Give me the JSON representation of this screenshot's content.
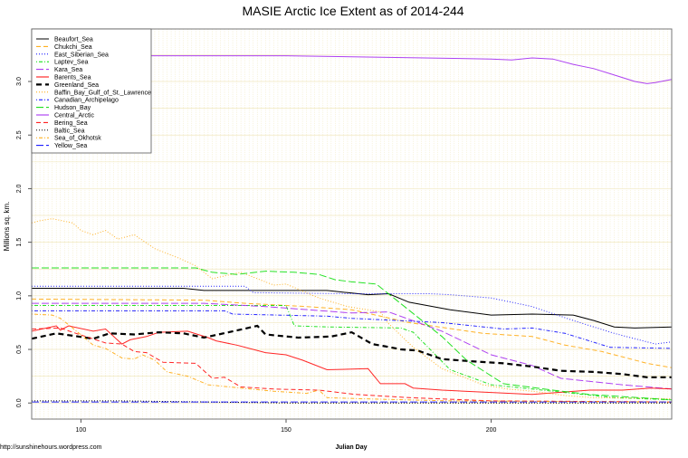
{
  "chart_data": {
    "type": "line",
    "title": "MASIE Arctic Ice Extent as of 2014-244",
    "xlabel": "Julian Day",
    "ylabel": "Millions sq. km.",
    "source": "http://sunshinehours.wordpress.com",
    "xlim": [
      88,
      244
    ],
    "ylim": [
      -0.15,
      3.49
    ],
    "xticks": [
      100,
      150,
      200
    ],
    "yticks": [
      0.0,
      0.5,
      1.0,
      1.5,
      2.0,
      2.5,
      3.0
    ],
    "ytick_labels": [
      "0.0",
      "0.5",
      "1.0",
      "1.5",
      "2.0",
      "2.5",
      "3.0"
    ],
    "grid": true,
    "legend_position": "top-left",
    "series": [
      {
        "name": "Beaufort_Sea",
        "color": "#000000",
        "style": "solid",
        "points": [
          [
            88,
            1.07
          ],
          [
            125,
            1.07
          ],
          [
            130,
            1.05
          ],
          [
            160,
            1.05
          ],
          [
            165,
            1.03
          ],
          [
            170,
            1.01
          ],
          [
            175,
            1.02
          ],
          [
            180,
            0.94
          ],
          [
            190,
            0.87
          ],
          [
            200,
            0.82
          ],
          [
            210,
            0.83
          ],
          [
            220,
            0.82
          ],
          [
            225,
            0.77
          ],
          [
            230,
            0.71
          ],
          [
            235,
            0.7
          ],
          [
            244,
            0.71
          ]
        ]
      },
      {
        "name": "Chukchi_Sea",
        "color": "#ffa500",
        "style": "dashed",
        "points": [
          [
            88,
            0.97
          ],
          [
            130,
            0.96
          ],
          [
            140,
            0.93
          ],
          [
            155,
            0.9
          ],
          [
            166,
            0.87
          ],
          [
            180,
            0.75
          ],
          [
            198,
            0.65
          ],
          [
            210,
            0.62
          ],
          [
            218,
            0.54
          ],
          [
            227,
            0.48
          ],
          [
            238,
            0.37
          ],
          [
            244,
            0.33
          ]
        ]
      },
      {
        "name": "East_Siberian_Sea",
        "color": "#0000ff",
        "style": "dotted",
        "points": [
          [
            88,
            1.09
          ],
          [
            140,
            1.09
          ],
          [
            142,
            1.03
          ],
          [
            165,
            1.02
          ],
          [
            185,
            1.02
          ],
          [
            190,
            1.01
          ],
          [
            200,
            0.98
          ],
          [
            210,
            0.9
          ],
          [
            220,
            0.77
          ],
          [
            230,
            0.65
          ],
          [
            240,
            0.55
          ],
          [
            244,
            0.57
          ]
        ]
      },
      {
        "name": "Laptev_Sea",
        "color": "#00dd00",
        "style": "dotdash",
        "points": [
          [
            88,
            0.91
          ],
          [
            150,
            0.91
          ],
          [
            152,
            0.72
          ],
          [
            160,
            0.71
          ],
          [
            178,
            0.7
          ],
          [
            181,
            0.66
          ],
          [
            190,
            0.31
          ],
          [
            200,
            0.17
          ],
          [
            210,
            0.13
          ],
          [
            220,
            0.09
          ],
          [
            230,
            0.05
          ],
          [
            244,
            0.03
          ]
        ]
      },
      {
        "name": "Kara_Sea",
        "color": "#a020f0",
        "style": "longdash",
        "points": [
          [
            88,
            0.93
          ],
          [
            130,
            0.93
          ],
          [
            145,
            0.9
          ],
          [
            166,
            0.84
          ],
          [
            175,
            0.85
          ],
          [
            188,
            0.67
          ],
          [
            200,
            0.45
          ],
          [
            210,
            0.35
          ],
          [
            217,
            0.23
          ],
          [
            232,
            0.17
          ],
          [
            244,
            0.13
          ]
        ]
      },
      {
        "name": "Barents_Sea",
        "color": "#ff0000",
        "style": "solid",
        "points": [
          [
            88,
            0.67
          ],
          [
            94,
            0.72
          ],
          [
            95,
            0.68
          ],
          [
            97,
            0.72
          ],
          [
            103,
            0.67
          ],
          [
            106,
            0.69
          ],
          [
            110,
            0.55
          ],
          [
            112,
            0.59
          ],
          [
            116,
            0.62
          ],
          [
            119,
            0.66
          ],
          [
            126,
            0.67
          ],
          [
            131,
            0.61
          ],
          [
            133,
            0.58
          ],
          [
            138,
            0.54
          ],
          [
            145,
            0.47
          ],
          [
            150,
            0.45
          ],
          [
            154,
            0.4
          ],
          [
            160,
            0.31
          ],
          [
            170,
            0.32
          ],
          [
            173,
            0.18
          ],
          [
            179,
            0.18
          ],
          [
            181,
            0.14
          ],
          [
            188,
            0.12
          ],
          [
            210,
            0.08
          ],
          [
            224,
            0.12
          ],
          [
            232,
            0.12
          ],
          [
            239,
            0.14
          ],
          [
            244,
            0.13
          ]
        ]
      },
      {
        "name": "Greenland_Sea",
        "color": "#000000",
        "style": "thickdash",
        "points": [
          [
            88,
            0.6
          ],
          [
            94,
            0.65
          ],
          [
            103,
            0.6
          ],
          [
            107,
            0.65
          ],
          [
            113,
            0.64
          ],
          [
            119,
            0.66
          ],
          [
            125,
            0.65
          ],
          [
            130,
            0.61
          ],
          [
            136,
            0.66
          ],
          [
            143,
            0.72
          ],
          [
            145,
            0.64
          ],
          [
            153,
            0.61
          ],
          [
            161,
            0.62
          ],
          [
            166,
            0.66
          ],
          [
            171,
            0.55
          ],
          [
            174,
            0.53
          ],
          [
            178,
            0.5
          ],
          [
            182,
            0.49
          ],
          [
            188,
            0.41
          ],
          [
            195,
            0.39
          ],
          [
            203,
            0.37
          ],
          [
            210,
            0.34
          ],
          [
            217,
            0.3
          ],
          [
            225,
            0.29
          ],
          [
            232,
            0.27
          ],
          [
            238,
            0.24
          ],
          [
            244,
            0.24
          ]
        ]
      },
      {
        "name": "Baffin_Bay_Gulf_of_St._Lawrence",
        "color": "#ffa500",
        "style": "dotted",
        "points": [
          [
            88,
            1.68
          ],
          [
            90,
            1.7
          ],
          [
            93,
            1.72
          ],
          [
            98,
            1.68
          ],
          [
            100,
            1.61
          ],
          [
            103,
            1.57
          ],
          [
            106,
            1.61
          ],
          [
            109,
            1.53
          ],
          [
            113,
            1.57
          ],
          [
            118,
            1.44
          ],
          [
            124,
            1.35
          ],
          [
            128,
            1.28
          ],
          [
            132,
            1.16
          ],
          [
            139,
            1.22
          ],
          [
            147,
            1.1
          ],
          [
            150,
            1.11
          ],
          [
            158,
            0.98
          ],
          [
            165,
            0.9
          ],
          [
            173,
            0.85
          ],
          [
            175,
            0.74
          ],
          [
            181,
            0.52
          ],
          [
            188,
            0.32
          ],
          [
            198,
            0.17
          ],
          [
            204,
            0.13
          ],
          [
            210,
            0.11
          ],
          [
            218,
            0.07
          ],
          [
            225,
            0.05
          ],
          [
            244,
            0.04
          ]
        ]
      },
      {
        "name": "Canadian_Archipelago",
        "color": "#0000ff",
        "style": "dotdash",
        "points": [
          [
            88,
            0.86
          ],
          [
            135,
            0.86
          ],
          [
            137,
            0.83
          ],
          [
            160,
            0.81
          ],
          [
            166,
            0.79
          ],
          [
            188,
            0.75
          ],
          [
            203,
            0.69
          ],
          [
            210,
            0.7
          ],
          [
            218,
            0.65
          ],
          [
            229,
            0.52
          ],
          [
            244,
            0.51
          ]
        ]
      },
      {
        "name": "Hudson_Bay",
        "color": "#00dd00",
        "style": "longdash",
        "points": [
          [
            88,
            1.26
          ],
          [
            128,
            1.26
          ],
          [
            132,
            1.22
          ],
          [
            138,
            1.2
          ],
          [
            145,
            1.23
          ],
          [
            152,
            1.22
          ],
          [
            158,
            1.2
          ],
          [
            162,
            1.15
          ],
          [
            166,
            1.13
          ],
          [
            172,
            1.11
          ],
          [
            188,
            0.62
          ],
          [
            194,
            0.4
          ],
          [
            203,
            0.18
          ],
          [
            215,
            0.12
          ],
          [
            224,
            0.08
          ],
          [
            244,
            0.03
          ]
        ]
      },
      {
        "name": "Central_Arctic",
        "color": "#a020f0",
        "style": "solid",
        "points": [
          [
            88,
            3.23
          ],
          [
            95,
            3.24
          ],
          [
            150,
            3.24
          ],
          [
            200,
            3.21
          ],
          [
            205,
            3.2
          ],
          [
            210,
            3.22
          ],
          [
            215,
            3.21
          ],
          [
            220,
            3.16
          ],
          [
            225,
            3.12
          ],
          [
            230,
            3.06
          ],
          [
            235,
            3.0
          ],
          [
            238,
            2.98
          ],
          [
            240,
            2.99
          ],
          [
            244,
            3.02
          ]
        ]
      },
      {
        "name": "Bering_Sea",
        "color": "#ff0000",
        "style": "dashed",
        "points": [
          [
            88,
            0.69
          ],
          [
            95,
            0.7
          ],
          [
            98,
            0.66
          ],
          [
            106,
            0.56
          ],
          [
            110,
            0.55
          ],
          [
            113,
            0.48
          ],
          [
            116,
            0.47
          ],
          [
            120,
            0.38
          ],
          [
            128,
            0.37
          ],
          [
            132,
            0.23
          ],
          [
            135,
            0.24
          ],
          [
            139,
            0.15
          ],
          [
            147,
            0.13
          ],
          [
            158,
            0.12
          ],
          [
            167,
            0.08
          ],
          [
            180,
            0.05
          ],
          [
            200,
            0.02
          ],
          [
            244,
            0.01
          ]
        ]
      },
      {
        "name": "Baltic_Sea",
        "color": "#000000",
        "style": "dotted",
        "points": [
          [
            88,
            0.02
          ],
          [
            110,
            0.02
          ],
          [
            130,
            0.01
          ],
          [
            150,
            0.0
          ],
          [
            244,
            0.0
          ]
        ]
      },
      {
        "name": "Sea_of_Okhotsk",
        "color": "#ffa500",
        "style": "dotdash",
        "points": [
          [
            88,
            0.83
          ],
          [
            93,
            0.82
          ],
          [
            95,
            0.79
          ],
          [
            98,
            0.7
          ],
          [
            103,
            0.54
          ],
          [
            106,
            0.51
          ],
          [
            110,
            0.42
          ],
          [
            113,
            0.41
          ],
          [
            115,
            0.45
          ],
          [
            118,
            0.4
          ],
          [
            121,
            0.29
          ],
          [
            126,
            0.25
          ],
          [
            131,
            0.17
          ],
          [
            139,
            0.14
          ],
          [
            147,
            0.11
          ],
          [
            155,
            0.09
          ],
          [
            158,
            0.12
          ],
          [
            160,
            0.05
          ],
          [
            168,
            0.04
          ],
          [
            190,
            0.02
          ],
          [
            244,
            0.01
          ]
        ]
      },
      {
        "name": "Yellow_Sea",
        "color": "#0000ff",
        "style": "longdash",
        "points": [
          [
            88,
            0.01
          ],
          [
            244,
            0.01
          ]
        ]
      }
    ]
  }
}
